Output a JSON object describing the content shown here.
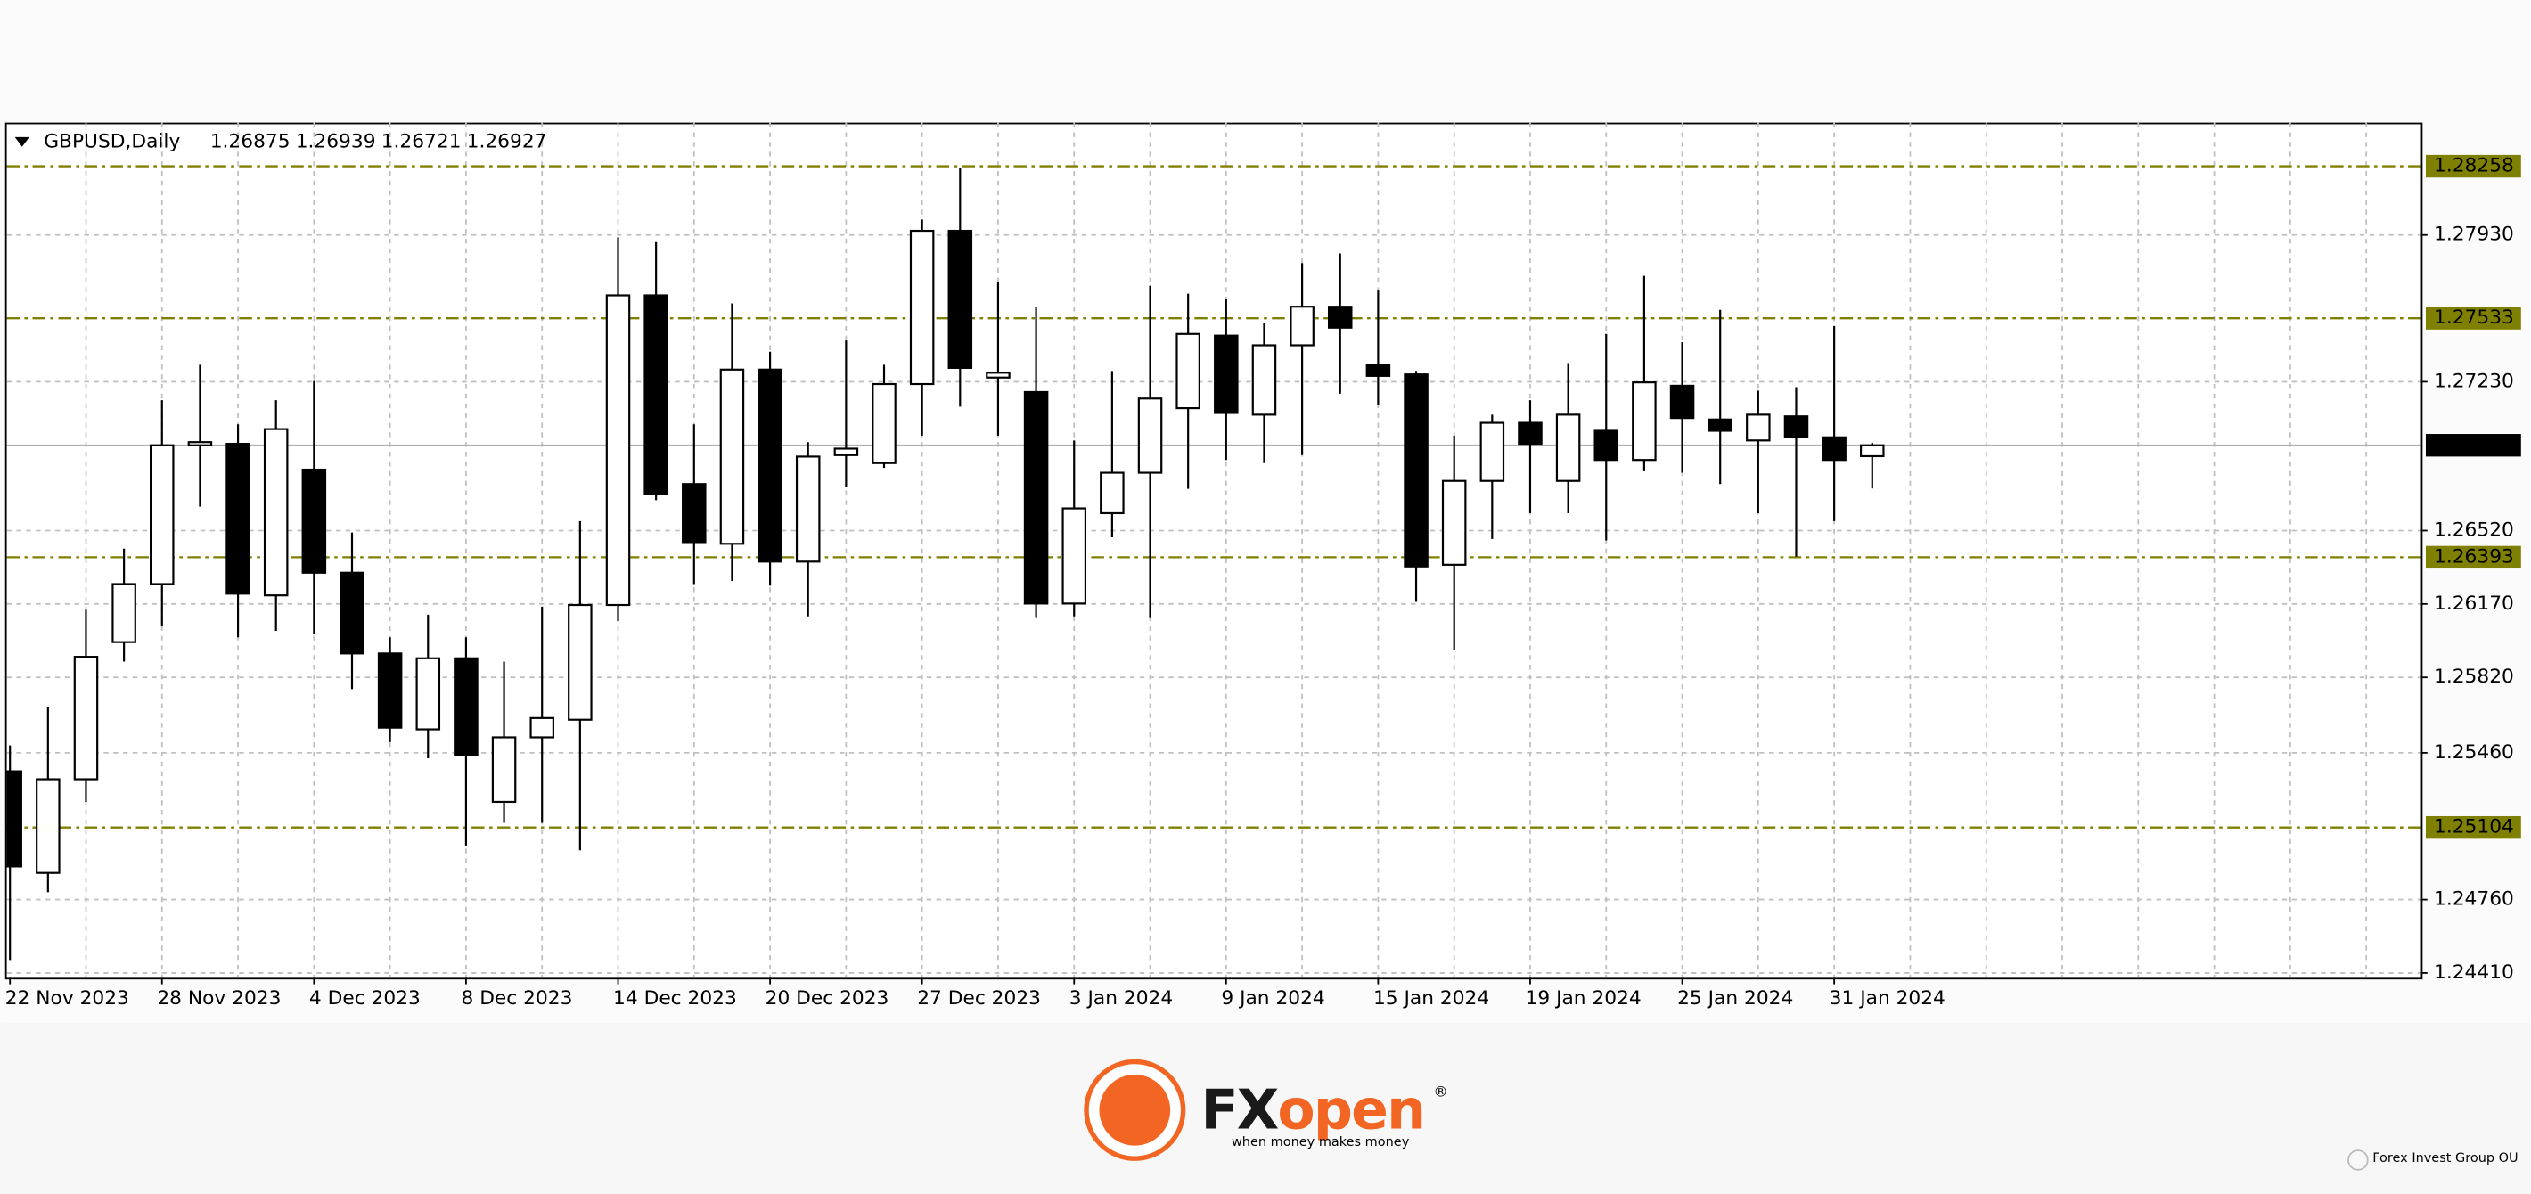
{
  "chart_data": {
    "type": "candlestick",
    "symbol": "GBPUSD,Daily",
    "categories": [
      "22 Nov 2023",
      null,
      null,
      null,
      "28 Nov 2023",
      null,
      null,
      null,
      "4 Dec 2023",
      null,
      null,
      null,
      "8 Dec 2023",
      null,
      null,
      null,
      "14 Dec 2023",
      null,
      null,
      null,
      "20 Dec 2023",
      null,
      null,
      null,
      "27 Dec 2023",
      null,
      null,
      null,
      "3 Jan 2024",
      null,
      null,
      null,
      "9 Jan 2024",
      null,
      null,
      null,
      "15 Jan 2024",
      null,
      null,
      null,
      "19 Jan 2024",
      null,
      null,
      null,
      "25 Jan 2024",
      null,
      null,
      null,
      "31 Jan 2024",
      null
    ],
    "open": [
      1.25372,
      1.24887,
      1.25334,
      1.25988,
      1.26265,
      1.26927,
      1.26934,
      1.26211,
      1.26811,
      1.26319,
      1.25934,
      1.25572,
      1.25911,
      1.25226,
      1.25534,
      1.25618,
      1.26165,
      1.27642,
      1.26742,
      1.26457,
      1.27288,
      1.26372,
      1.2688,
      1.26842,
      1.27219,
      1.2795,
      1.2725,
      1.27181,
      1.26172,
      1.26603,
      1.26796,
      1.27104,
      1.2745,
      1.27073,
      1.27404,
      1.27588,
      1.27311,
      1.27265,
      1.26357,
      1.26757,
      1.27034,
      1.26757,
      1.26996,
      1.26857,
      1.27211,
      1.2705,
      1.2695,
      1.27065,
      1.26965,
      1.26875
    ],
    "high": [
      1.25495,
      1.2568,
      1.26142,
      1.26434,
      1.27142,
      1.27311,
      1.27027,
      1.27142,
      1.27234,
      1.26511,
      1.26011,
      1.26119,
      1.26011,
      1.25895,
      1.26157,
      1.26565,
      1.27919,
      1.27896,
      1.27027,
      1.27604,
      1.27373,
      1.26942,
      1.27427,
      1.27311,
      1.28004,
      1.2825,
      1.27704,
      1.27588,
      1.2695,
      1.27281,
      1.27688,
      1.2765,
      1.27627,
      1.27511,
      1.27796,
      1.27842,
      1.27665,
      1.27281,
      1.26973,
      1.27073,
      1.27142,
      1.27319,
      1.27458,
      1.27735,
      1.27419,
      1.27573,
      1.27188,
      1.27204,
      1.27496,
      1.26939
    ],
    "low": [
      1.24472,
      1.24795,
      1.25226,
      1.25895,
      1.26065,
      1.26634,
      1.26011,
      1.26042,
      1.26026,
      1.25764,
      1.25511,
      1.25434,
      1.25018,
      1.25126,
      1.25126,
      1.24995,
      1.26088,
      1.26665,
      1.26265,
      1.2628,
      1.26257,
      1.26111,
      1.26726,
      1.26819,
      1.26973,
      1.27111,
      1.26973,
      1.26103,
      1.26111,
      1.26488,
      1.26103,
      1.26719,
      1.26857,
      1.26842,
      1.2688,
      1.27173,
      1.27119,
      1.2618,
      1.25949,
      1.2648,
      1.26603,
      1.26603,
      1.26473,
      1.26803,
      1.26796,
      1.26742,
      1.26603,
      1.26396,
      1.26565,
      1.26721
    ],
    "close": [
      1.24918,
      1.25334,
      1.25918,
      1.26265,
      1.26927,
      1.26942,
      1.26219,
      1.27004,
      1.26319,
      1.25934,
      1.2558,
      1.25911,
      1.25449,
      1.25534,
      1.25626,
      1.26165,
      1.27642,
      1.26696,
      1.26465,
      1.27288,
      1.26372,
      1.26873,
      1.26911,
      1.27219,
      1.2795,
      1.27296,
      1.27273,
      1.26172,
      1.26626,
      1.26796,
      1.2715,
      1.27458,
      1.27081,
      1.27404,
      1.27588,
      1.27488,
      1.27258,
      1.26349,
      1.26757,
      1.27034,
      1.26934,
      1.27073,
      1.26857,
      1.27227,
      1.27057,
      1.26996,
      1.27073,
      1.26965,
      1.26857,
      1.26927
    ],
    "ylim": [
      1.24387,
      1.28466
    ],
    "yticks": [
      {
        "value": 1.2793,
        "label": "1.27930"
      },
      {
        "value": 1.2723,
        "label": "1.27230"
      },
      {
        "value": 1.2652,
        "label": "1.26520"
      },
      {
        "value": 1.2617,
        "label": "1.26170"
      },
      {
        "value": 1.2582,
        "label": "1.25820"
      },
      {
        "value": 1.2546,
        "label": "1.25460"
      },
      {
        "value": 1.2476,
        "label": "1.24760"
      },
      {
        "value": 1.2441,
        "label": "1.24410"
      }
    ],
    "levels": [
      1.28258,
      1.27533,
      1.26393,
      1.25104
    ],
    "level_color": "#808000",
    "grid": true,
    "bull_color": "#ffffff",
    "bear_color": "#000000"
  },
  "branding": {
    "logo_parts": [
      "FX",
      "open"
    ],
    "registered": "®",
    "tagline": "when money makes money",
    "footer": "Forex Invest Group OU"
  }
}
